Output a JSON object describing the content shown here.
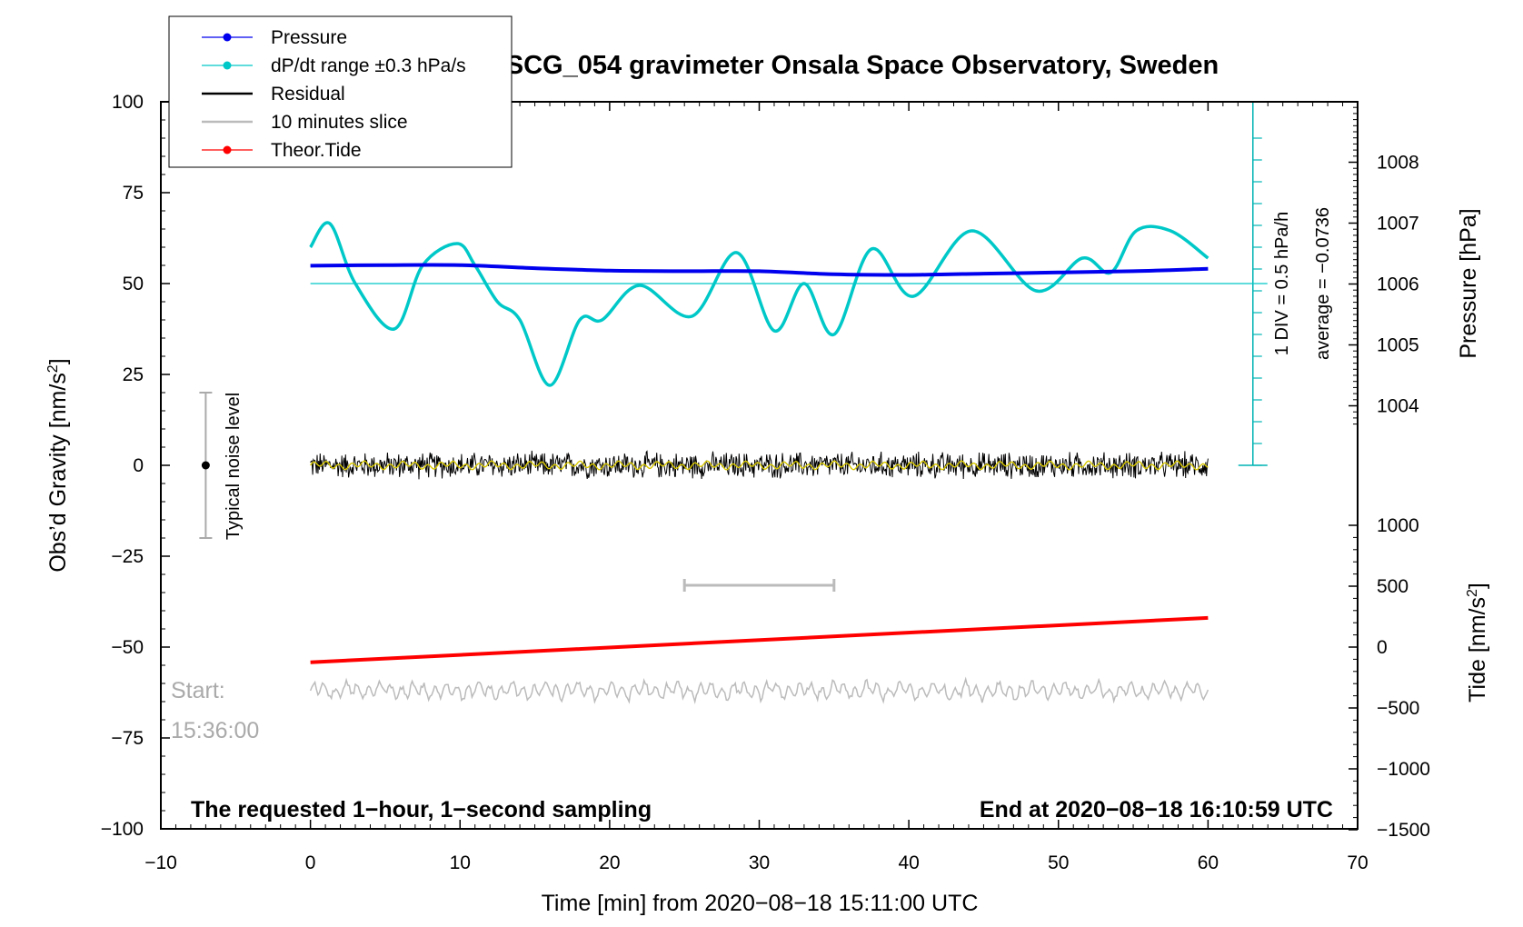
{
  "chart_data": {
    "type": "line",
    "title": "SCG_054 gravimeter Onsala Space Observatory, Sweden",
    "xlabel": "Time [min] from 2020−08−18 15:11:00 UTC",
    "ylabel_left": "Obs’d Gravity [nm/s",
    "ylabel_left_sup": "2",
    "ylabel_left_end": "]",
    "ylabel_right_top": "Pressure [hPa]",
    "ylabel_right_bottom": "Tide [nm/s",
    "ylabel_right_bottom_sup": "2",
    "ylabel_right_bottom_end": "]",
    "xlim": [
      -10,
      70
    ],
    "ylim_left": [
      -100,
      100
    ],
    "x_ticks": [
      -10,
      0,
      10,
      20,
      30,
      40,
      50,
      60,
      70
    ],
    "x_tick_labels": [
      "−10",
      "0",
      "10",
      "20",
      "30",
      "40",
      "50",
      "60",
      "70"
    ],
    "y_ticks_left": [
      100,
      75,
      50,
      25,
      0,
      -25,
      -50,
      -75,
      -100
    ],
    "y_tick_labels_left": [
      "100",
      "75",
      "50",
      "25",
      "0",
      "−25",
      "−50",
      "−75",
      "−100"
    ],
    "pressure_ticks": [
      1008,
      1007,
      1006,
      1005,
      1004
    ],
    "pressure_tick_labels": [
      "1008",
      "1007",
      "1006",
      "1005",
      "1004"
    ],
    "tide_ticks": [
      1000,
      500,
      0,
      -500,
      -1000,
      -1500
    ],
    "tide_tick_labels": [
      "1000",
      "500",
      "0",
      "−500",
      "−1000",
      "−1500"
    ],
    "legend": {
      "position": "top-left",
      "entries": [
        {
          "label": "Pressure",
          "color": "#0000ee",
          "marker": "dot"
        },
        {
          "label": "dP/dt range ±0.3 hPa/s",
          "color": "#00c8c8",
          "marker": "dot"
        },
        {
          "label": "Residual",
          "color": "#000000",
          "marker": "none"
        },
        {
          "label": "10 minutes slice",
          "color": "#bbbbbb",
          "marker": "none"
        },
        {
          "label": "Theor.Tide",
          "color": "#ff0000",
          "marker": "dot"
        }
      ]
    },
    "series": [
      {
        "name": "Pressure",
        "color": "#0000ee",
        "unit": "hPa",
        "x": [
          0,
          5,
          10,
          15,
          20,
          25,
          30,
          35,
          40,
          45,
          50,
          55,
          60
        ],
        "values": [
          1006.3,
          1006.31,
          1006.31,
          1006.26,
          1006.22,
          1006.21,
          1006.21,
          1006.16,
          1006.15,
          1006.17,
          1006.19,
          1006.21,
          1006.25
        ]
      },
      {
        "name": "dP/dt range ±0.3 hPa/s",
        "color": "#00c8c8",
        "unit": "nm/s2 display",
        "x": [
          0,
          1.3,
          3,
          5.6,
          7.5,
          9.8,
          11,
          12.5,
          14,
          16,
          18,
          19.5,
          22,
          25.5,
          28.5,
          31,
          33,
          35,
          37.5,
          40.3,
          44.2,
          48.5,
          51.6,
          53.5,
          55.2,
          57.5,
          60
        ],
        "values": [
          60,
          66.5,
          50,
          37.5,
          55,
          61,
          55,
          45,
          40,
          22,
          40,
          40,
          49.5,
          41,
          58.5,
          37,
          50,
          36,
          59.5,
          46.5,
          64.5,
          48,
          57,
          53,
          64.5,
          64.5,
          57
        ]
      },
      {
        "name": "Residual",
        "color": "#000000",
        "unit": "nm/s2",
        "x": [
          0,
          60
        ],
        "values": [
          0,
          0
        ],
        "noise_amplitude": 3
      },
      {
        "name": "10 minutes slice",
        "color": "#bbbbbb",
        "unit": "nm/s2",
        "x": [
          0,
          60
        ],
        "values": [
          -62,
          -62
        ],
        "noise_amplitude": 2.5
      },
      {
        "name": "Theor.Tide",
        "color": "#ff0000",
        "unit": "nm/s2",
        "x": [
          0,
          60
        ],
        "values": [
          -125,
          240
        ]
      }
    ],
    "average_line": {
      "value": 50,
      "color": "#00c8c8"
    },
    "slice_marker": {
      "x_start": 25,
      "x_end": 35,
      "y": -33,
      "color": "#bbbbbb"
    },
    "noise_bar": {
      "x": -7,
      "low": -20,
      "high": 20,
      "label": "Typical noise level"
    },
    "right_inset_labels": [
      "1 DIV = 0.5 hPa/h",
      "average = −0.0736"
    ],
    "start_label": [
      "Start:",
      "15:36:00"
    ],
    "footer_left": "The requested 1−hour, 1−second sampling",
    "footer_right": "End at 2020−08−18 16:10:59 UTC"
  }
}
